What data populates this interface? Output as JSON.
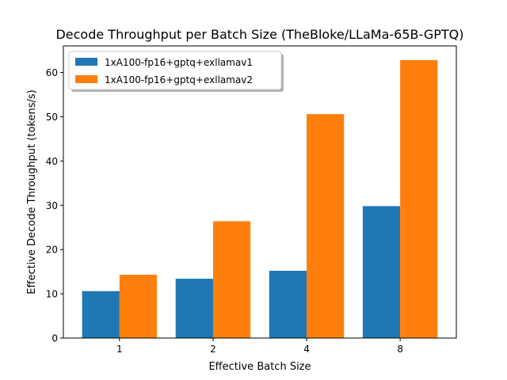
{
  "chart_data": {
    "type": "bar",
    "title": "Decode Throughput per Batch Size (TheBloke/LLaMa-65B-GPTQ)",
    "xlabel": "Effective Batch Size",
    "ylabel": "Effective Decode Throughput (tokens/s)",
    "categories": [
      "1",
      "2",
      "4",
      "8"
    ],
    "ylim": [
      0,
      66
    ],
    "yticks": [
      0,
      10,
      20,
      30,
      40,
      50,
      60
    ],
    "grid": false,
    "legend_position": "top-left",
    "series": [
      {
        "name": "1xA100-fp16+gptq+exllamav1",
        "color": "#1f77b4",
        "values": [
          10.6,
          13.4,
          15.2,
          29.8
        ]
      },
      {
        "name": "1xA100-fp16+gptq+exllamav2",
        "color": "#ff7f0e",
        "values": [
          14.3,
          26.4,
          50.6,
          62.8
        ]
      }
    ]
  }
}
